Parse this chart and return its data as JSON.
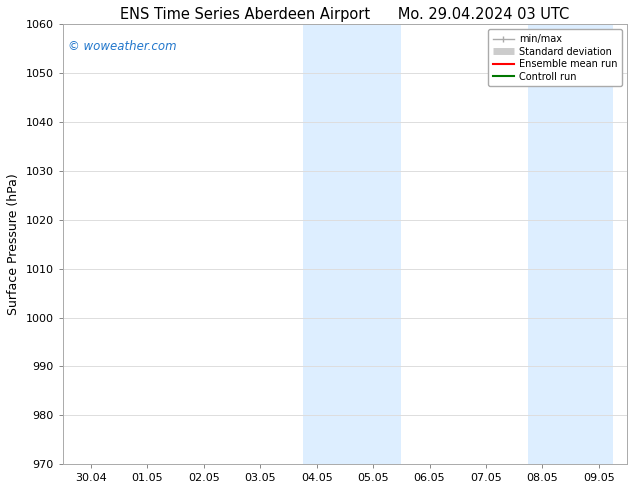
{
  "title_left": "ENS Time Series Aberdeen Airport",
  "title_right": "Mo. 29.04.2024 03 UTC",
  "ylabel": "Surface Pressure (hPa)",
  "ylim": [
    970,
    1060
  ],
  "yticks": [
    970,
    980,
    990,
    1000,
    1010,
    1020,
    1030,
    1040,
    1050,
    1060
  ],
  "x_labels": [
    "30.04",
    "01.05",
    "02.05",
    "03.05",
    "04.05",
    "05.05",
    "06.05",
    "07.05",
    "08.05",
    "09.05"
  ],
  "x_positions": [
    0,
    1,
    2,
    3,
    4,
    5,
    6,
    7,
    8,
    9
  ],
  "shaded_bands": [
    {
      "xmin": 3.75,
      "xmax": 5.5
    },
    {
      "xmin": 7.75,
      "xmax": 9.25
    }
  ],
  "shade_color": "#ddeeff",
  "watermark": "© woweather.com",
  "watermark_color": "#2277cc",
  "legend_items": [
    {
      "label": "min/max",
      "color": "#aaaaaa",
      "lw": 1.0
    },
    {
      "label": "Standard deviation",
      "color": "#cccccc",
      "lw": 5
    },
    {
      "label": "Ensemble mean run",
      "color": "#ff0000",
      "lw": 1.5
    },
    {
      "label": "Controll run",
      "color": "#007700",
      "lw": 1.5
    }
  ],
  "bg_color": "#ffffff",
  "grid_color": "#dddddd",
  "title_fontsize": 10.5,
  "label_fontsize": 9,
  "tick_fontsize": 8,
  "watermark_fontsize": 8.5
}
